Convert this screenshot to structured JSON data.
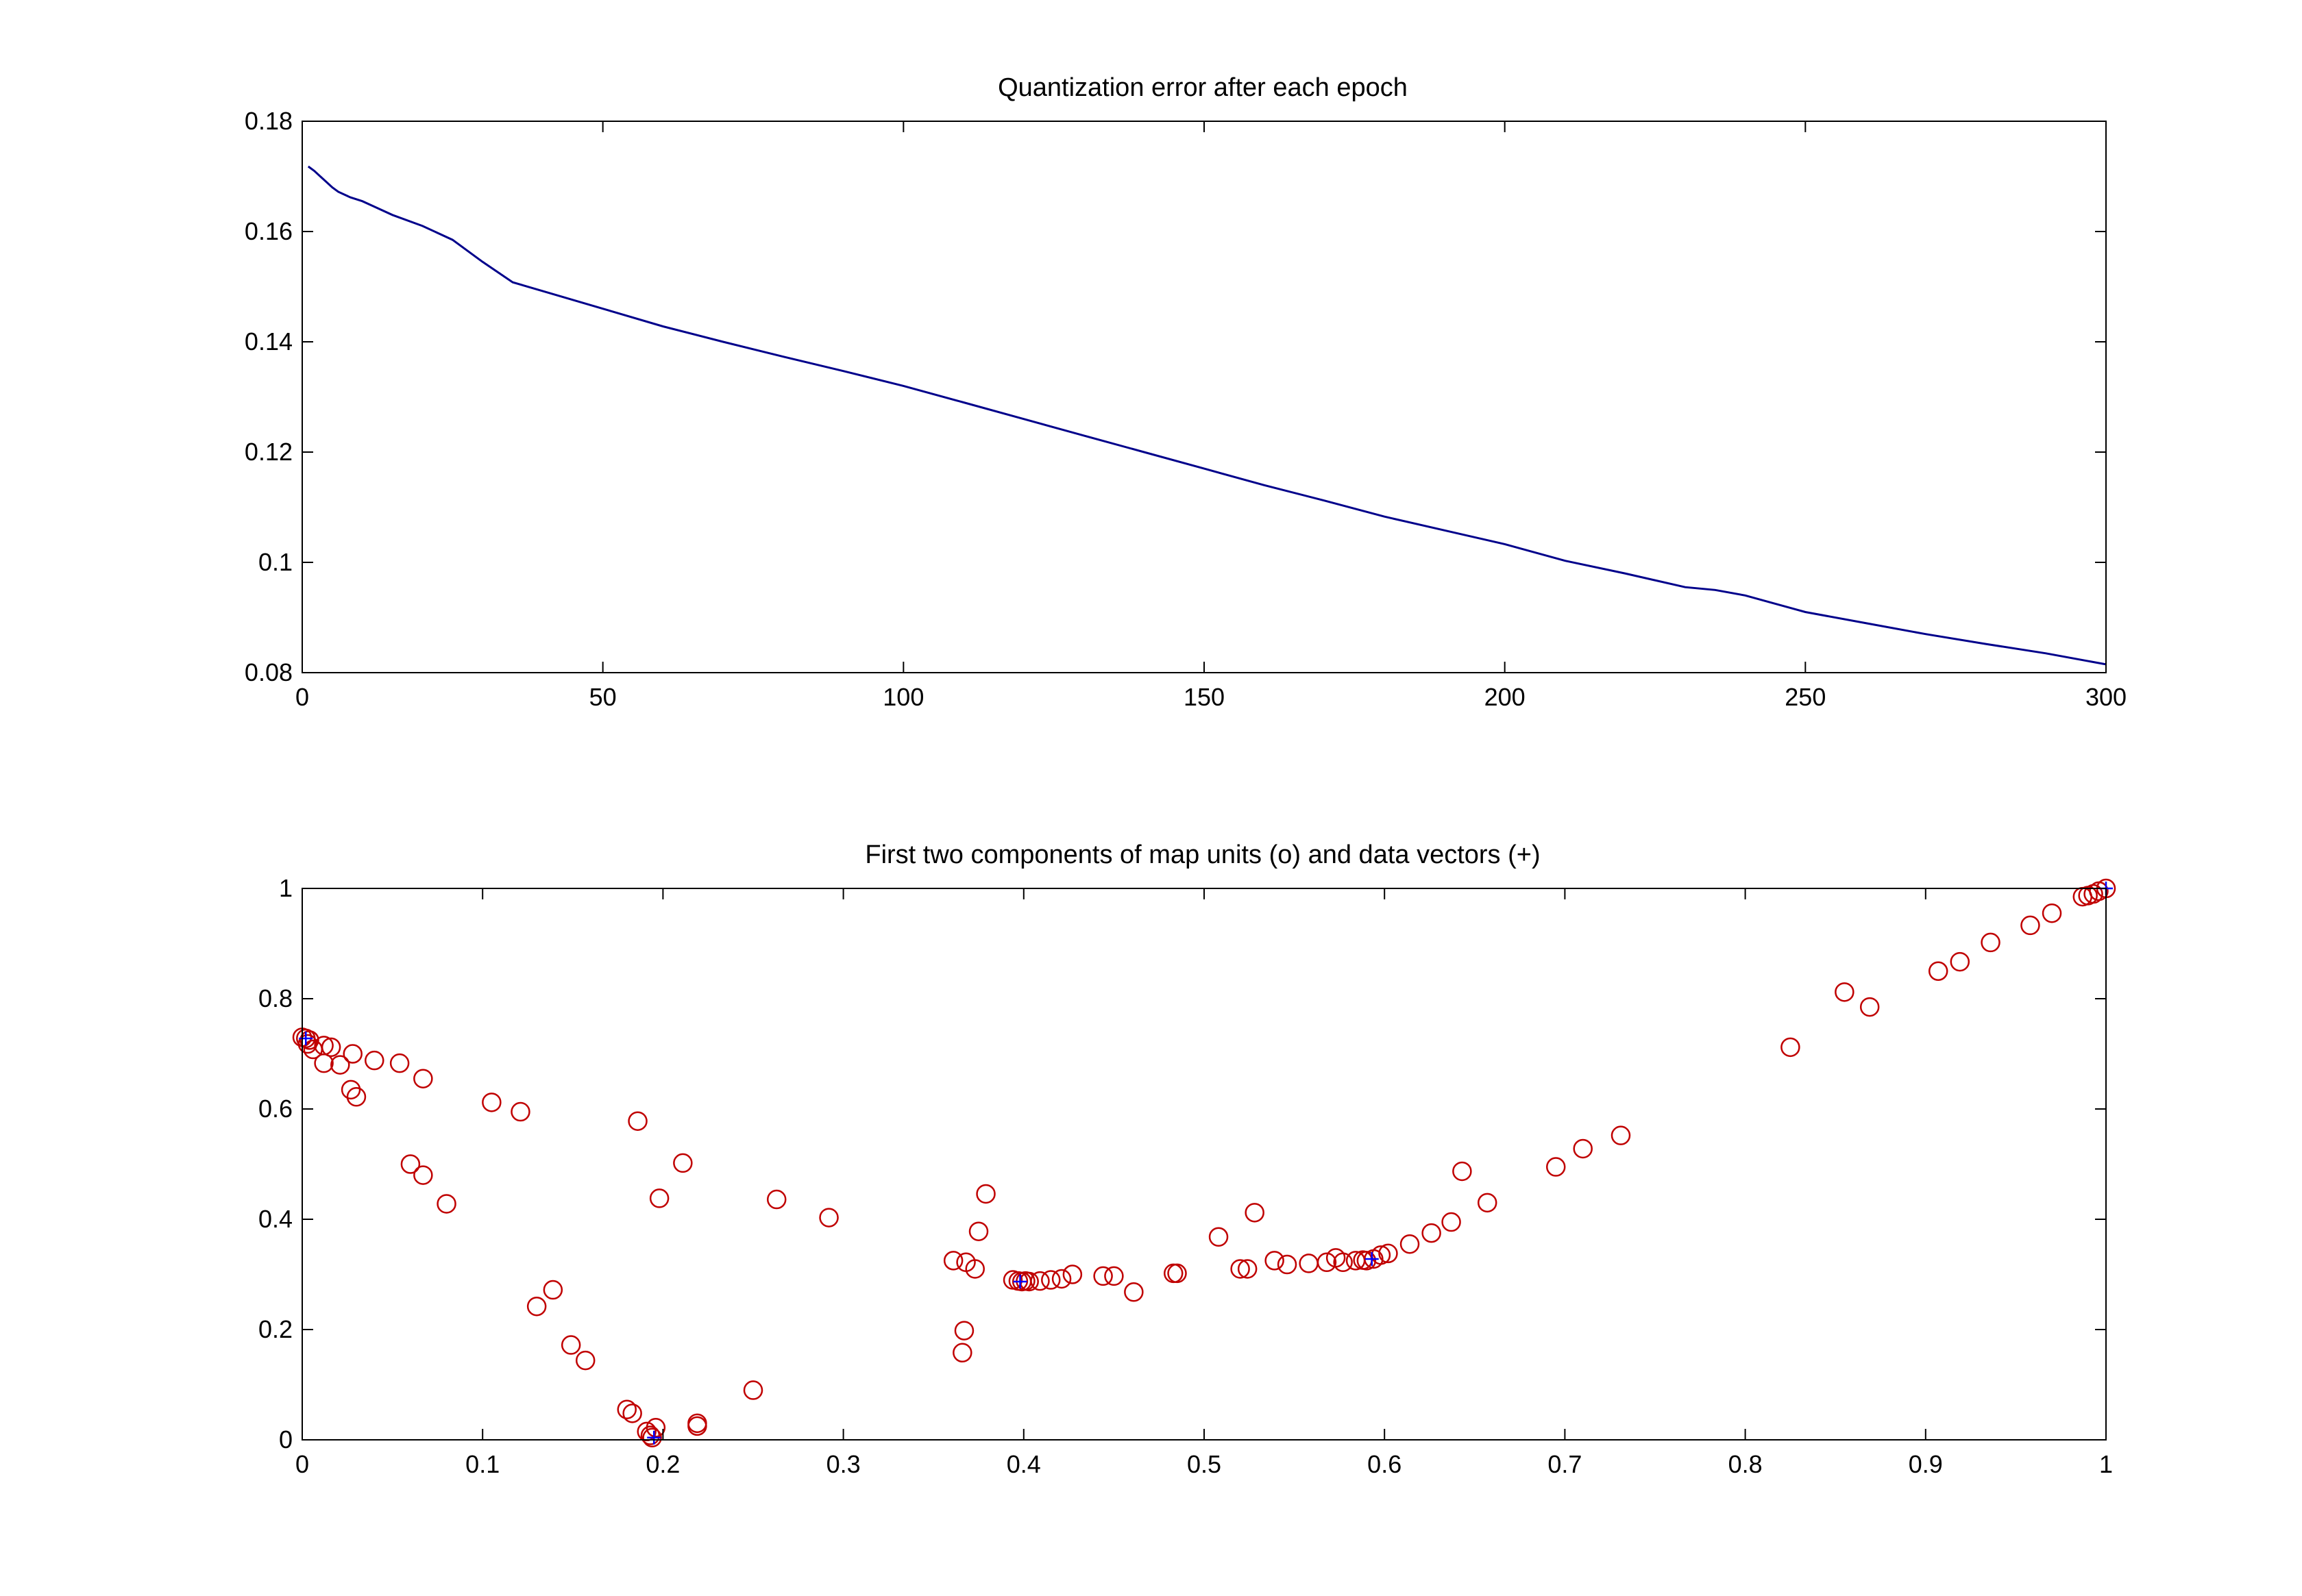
{
  "chart_data": [
    {
      "type": "line",
      "title": "Quantization error after each epoch",
      "xlabel": "",
      "ylabel": "",
      "xlim": [
        0,
        300
      ],
      "ylim": [
        0.08,
        0.18
      ],
      "xticks": [
        "0",
        "50",
        "100",
        "150",
        "200",
        "250",
        "300"
      ],
      "yticks": [
        "0.08",
        "0.1",
        "0.12",
        "0.14",
        "0.16",
        "0.18"
      ],
      "grid": false,
      "colors": {
        "line": "#00008b"
      },
      "series": [
        {
          "x": [
            1,
            2,
            3,
            4,
            5,
            6,
            8,
            10,
            12,
            15,
            20,
            25,
            30,
            35,
            40,
            50,
            60,
            70,
            80,
            90,
            100,
            110,
            120,
            130,
            140,
            150,
            160,
            170,
            180,
            190,
            200,
            210,
            220,
            230,
            235,
            240,
            245,
            250,
            260,
            270,
            280,
            290,
            300
          ],
          "values": [
            0.1718,
            0.171,
            0.17,
            0.169,
            0.168,
            0.1672,
            0.1662,
            0.1655,
            0.1645,
            0.163,
            0.161,
            0.1585,
            0.1545,
            0.1508,
            0.1492,
            0.146,
            0.1428,
            0.14,
            0.1373,
            0.1347,
            0.132,
            0.129,
            0.126,
            0.123,
            0.12,
            0.117,
            0.114,
            0.1112,
            0.1083,
            0.1058,
            0.1033,
            0.1003,
            0.098,
            0.0955,
            0.095,
            0.094,
            0.0925,
            0.091,
            0.089,
            0.087,
            0.0852,
            0.0835,
            0.0815
          ]
        }
      ]
    },
    {
      "type": "scatter",
      "title": "First two components of map units (o) and data vectors (+)",
      "xlabel": "",
      "ylabel": "",
      "xlim": [
        0,
        1
      ],
      "ylim": [
        0,
        1
      ],
      "xticks": [
        "0",
        "0.1",
        "0.2",
        "0.3",
        "0.4",
        "0.5",
        "0.6",
        "0.7",
        "0.8",
        "0.9",
        "1"
      ],
      "yticks": [
        "0",
        "0.2",
        "0.4",
        "0.6",
        "0.8",
        "1"
      ],
      "grid": false,
      "colors": {
        "map_units": "#c00000",
        "data_vectors": "#0000ff"
      },
      "series": [
        {
          "marker": "o",
          "points": [
            [
              0.0,
              0.73
            ],
            [
              0.002,
              0.728
            ],
            [
              0.004,
              0.725
            ],
            [
              0.003,
              0.718
            ],
            [
              0.006,
              0.708
            ],
            [
              0.012,
              0.715
            ],
            [
              0.016,
              0.712
            ],
            [
              0.028,
              0.7
            ],
            [
              0.012,
              0.683
            ],
            [
              0.021,
              0.68
            ],
            [
              0.04,
              0.688
            ],
            [
              0.054,
              0.683
            ],
            [
              0.067,
              0.655
            ],
            [
              0.027,
              0.635
            ],
            [
              0.03,
              0.622
            ],
            [
              0.06,
              0.5
            ],
            [
              0.067,
              0.48
            ],
            [
              0.08,
              0.428
            ],
            [
              0.105,
              0.612
            ],
            [
              0.121,
              0.595
            ],
            [
              0.186,
              0.578
            ],
            [
              0.211,
              0.502
            ],
            [
              0.198,
              0.438
            ],
            [
              0.13,
              0.242
            ],
            [
              0.139,
              0.272
            ],
            [
              0.149,
              0.172
            ],
            [
              0.157,
              0.144
            ],
            [
              0.18,
              0.055
            ],
            [
              0.183,
              0.048
            ],
            [
              0.191,
              0.015
            ],
            [
              0.193,
              0.008
            ],
            [
              0.196,
              0.022
            ],
            [
              0.194,
              0.004
            ],
            [
              0.219,
              0.03
            ],
            [
              0.219,
              0.025
            ],
            [
              0.25,
              0.09
            ],
            [
              0.263,
              0.436
            ],
            [
              0.292,
              0.403
            ],
            [
              0.361,
              0.325
            ],
            [
              0.368,
              0.322
            ],
            [
              0.373,
              0.31
            ],
            [
              0.367,
              0.198
            ],
            [
              0.366,
              0.158
            ],
            [
              0.379,
              0.446
            ],
            [
              0.375,
              0.378
            ],
            [
              0.394,
              0.29
            ],
            [
              0.397,
              0.288
            ],
            [
              0.399,
              0.287
            ],
            [
              0.401,
              0.288
            ],
            [
              0.403,
              0.287
            ],
            [
              0.409,
              0.288
            ],
            [
              0.415,
              0.29
            ],
            [
              0.421,
              0.292
            ],
            [
              0.427,
              0.3
            ],
            [
              0.444,
              0.297
            ],
            [
              0.45,
              0.297
            ],
            [
              0.461,
              0.268
            ],
            [
              0.483,
              0.302
            ],
            [
              0.485,
              0.302
            ],
            [
              0.508,
              0.368
            ],
            [
              0.52,
              0.31
            ],
            [
              0.524,
              0.31
            ],
            [
              0.528,
              0.412
            ],
            [
              0.539,
              0.325
            ],
            [
              0.546,
              0.318
            ],
            [
              0.558,
              0.32
            ],
            [
              0.568,
              0.322
            ],
            [
              0.573,
              0.33
            ],
            [
              0.577,
              0.322
            ],
            [
              0.584,
              0.325
            ],
            [
              0.588,
              0.326
            ],
            [
              0.59,
              0.325
            ],
            [
              0.594,
              0.328
            ],
            [
              0.598,
              0.335
            ],
            [
              0.602,
              0.338
            ],
            [
              0.614,
              0.355
            ],
            [
              0.626,
              0.375
            ],
            [
              0.637,
              0.395
            ],
            [
              0.643,
              0.487
            ],
            [
              0.657,
              0.43
            ],
            [
              0.695,
              0.495
            ],
            [
              0.71,
              0.528
            ],
            [
              0.731,
              0.552
            ],
            [
              0.825,
              0.712
            ],
            [
              0.855,
              0.812
            ],
            [
              0.869,
              0.785
            ],
            [
              0.907,
              0.85
            ],
            [
              0.919,
              0.867
            ],
            [
              0.936,
              0.902
            ],
            [
              0.958,
              0.933
            ],
            [
              0.97,
              0.955
            ],
            [
              0.987,
              0.985
            ],
            [
              0.99,
              0.987
            ],
            [
              0.993,
              0.99
            ],
            [
              0.996,
              0.995
            ],
            [
              1.0,
              1.0
            ]
          ]
        },
        {
          "marker": "+",
          "points": [
            [
              0.002,
              0.728
            ],
            [
              0.195,
              0.004
            ],
            [
              0.398,
              0.287
            ],
            [
              0.593,
              0.328
            ],
            [
              1.0,
              1.0
            ]
          ]
        }
      ]
    }
  ]
}
